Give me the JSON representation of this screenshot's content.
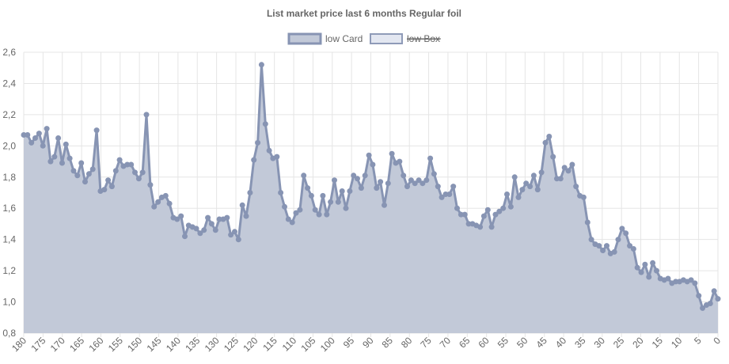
{
  "chart_data": {
    "type": "line",
    "title": "List market price last 6 months Regular foil",
    "xlabel": "",
    "ylabel": "",
    "x_ticks": [
      "180",
      "175",
      "170",
      "165",
      "160",
      "155",
      "150",
      "145",
      "140",
      "135",
      "130",
      "125",
      "120",
      "115",
      "110",
      "105",
      "100",
      "95",
      "90",
      "85",
      "80",
      "75",
      "70",
      "65",
      "60",
      "55",
      "50",
      "45",
      "40",
      "35",
      "30",
      "25",
      "20",
      "15",
      "10",
      "5",
      "0"
    ],
    "y_ticks": [
      "0,8",
      "1,0",
      "1,2",
      "1,4",
      "1,6",
      "1,8",
      "2,0",
      "2,2",
      "2,4",
      "2,6"
    ],
    "xlim": [
      180,
      0
    ],
    "ylim": [
      0.8,
      2.6
    ],
    "grid": true,
    "legend": "top-center",
    "series": [
      {
        "name": "low Card",
        "visible": true,
        "line_color": "#8794b3",
        "fill_color": "#c2c9d8",
        "values": [
          2.07,
          2.07,
          2.02,
          2.05,
          2.08,
          2.0,
          2.11,
          1.9,
          1.93,
          2.05,
          1.89,
          2.01,
          1.92,
          1.84,
          1.81,
          1.89,
          1.77,
          1.82,
          1.85,
          2.1,
          1.71,
          1.72,
          1.78,
          1.74,
          1.84,
          1.91,
          1.87,
          1.88,
          1.88,
          1.83,
          1.79,
          1.83,
          2.2,
          1.75,
          1.61,
          1.64,
          1.67,
          1.68,
          1.63,
          1.54,
          1.53,
          1.55,
          1.42,
          1.49,
          1.48,
          1.47,
          1.44,
          1.46,
          1.54,
          1.5,
          1.46,
          1.53,
          1.53,
          1.54,
          1.43,
          1.45,
          1.4,
          1.62,
          1.55,
          1.7,
          1.91,
          2.02,
          2.52,
          2.14,
          1.97,
          1.92,
          1.93,
          1.7,
          1.61,
          1.53,
          1.51,
          1.57,
          1.59,
          1.81,
          1.73,
          1.68,
          1.59,
          1.56,
          1.68,
          1.56,
          1.64,
          1.78,
          1.64,
          1.71,
          1.6,
          1.71,
          1.81,
          1.79,
          1.73,
          1.81,
          1.94,
          1.88,
          1.73,
          1.77,
          1.62,
          1.76,
          1.95,
          1.89,
          1.9,
          1.81,
          1.74,
          1.78,
          1.76,
          1.78,
          1.76,
          1.78,
          1.92,
          1.82,
          1.74,
          1.67,
          1.69,
          1.69,
          1.74,
          1.6,
          1.56,
          1.56,
          1.5,
          1.5,
          1.49,
          1.48,
          1.55,
          1.59,
          1.48,
          1.56,
          1.58,
          1.6,
          1.69,
          1.61,
          1.8,
          1.67,
          1.72,
          1.76,
          1.74,
          1.81,
          1.72,
          1.83,
          2.02,
          2.06,
          1.93,
          1.79,
          1.79,
          1.86,
          1.84,
          1.88,
          1.74,
          1.68,
          1.67,
          1.51,
          1.4,
          1.37,
          1.36,
          1.33,
          1.36,
          1.31,
          1.32,
          1.4,
          1.47,
          1.44,
          1.36,
          1.34,
          1.22,
          1.19,
          1.24,
          1.16,
          1.25,
          1.2,
          1.15,
          1.14,
          1.15,
          1.12,
          1.13,
          1.13,
          1.14,
          1.13,
          1.14,
          1.12,
          1.04,
          0.96,
          0.98,
          0.99,
          1.07,
          1.02
        ]
      },
      {
        "name": "low Box",
        "visible": false,
        "line_color": "#8f9bb8",
        "fill_color": "#e3e7f1",
        "values": []
      }
    ]
  }
}
